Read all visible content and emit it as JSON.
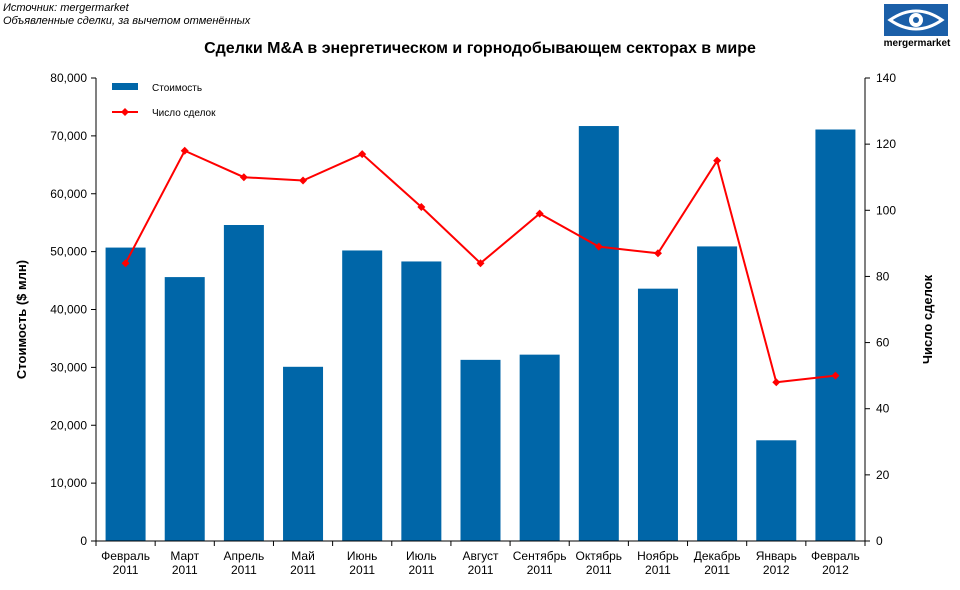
{
  "source": {
    "line1": "Источник: mergermarket",
    "line2": "Объявленные сделки, за вычетом отменённых"
  },
  "logo": {
    "text": "mergermarket",
    "icon": "eye-logo-icon",
    "color": "#1b5fa8"
  },
  "chart_data": {
    "type": "bar+line",
    "title": "Сделки M&A в энергетическом и горнодобывающем секторах в мире",
    "categories": [
      "Февраль 2011",
      "Март 2011",
      "Апрель 2011",
      "Май 2011",
      "Июнь 2011",
      "Июль 2011",
      "Август 2011",
      "Сентябрь 2011",
      "Октябрь 2011",
      "Ноябрь 2011",
      "Декабрь 2011",
      "Январь 2012",
      "Февраль 2012"
    ],
    "series": [
      {
        "name": "Стоимость",
        "type": "bar",
        "axis": "left",
        "color": "#0066a8",
        "values": [
          50700,
          45600,
          54600,
          30100,
          50200,
          48300,
          31300,
          32200,
          71700,
          43600,
          50900,
          17400,
          71100
        ]
      },
      {
        "name": "Число сделок",
        "type": "line",
        "axis": "right",
        "color": "#ff0000",
        "values": [
          84,
          118,
          110,
          109,
          117,
          101,
          84,
          99,
          89,
          87,
          115,
          48,
          50
        ]
      }
    ],
    "ylabel_left": "Стоимость  ($ млн)",
    "ylabel_right": "Число сделок",
    "ylim_left": [
      0,
      80000
    ],
    "ylim_right": [
      0,
      140
    ],
    "yticks_left": [
      "0",
      "10,000",
      "20,000",
      "30,000",
      "40,000",
      "50,000",
      "60,000",
      "70,000",
      "80,000"
    ],
    "yticks_right": [
      "0",
      "20",
      "40",
      "60",
      "80",
      "100",
      "120",
      "140"
    ],
    "grid": false,
    "legend_position": "top-left"
  }
}
